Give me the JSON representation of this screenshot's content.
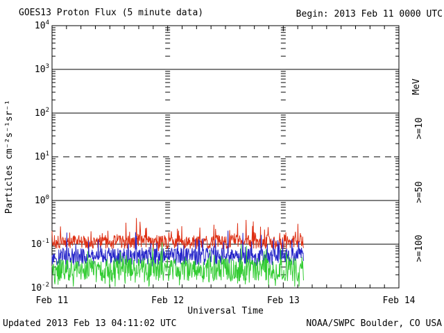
{
  "header": {
    "title": "GOES13 Proton Flux (5 minute data)",
    "begin": "Begin: 2013 Feb 11 0000 UTC"
  },
  "footer": {
    "updated": "Updated 2013 Feb 13 04:11:02 UTC",
    "source": "NOAA/SWPC Boulder, CO USA"
  },
  "colors": {
    "axis": "#000000",
    "background": "#ffffff",
    "ge10": "#de3014",
    "ge50": "#2626c9",
    "ge100": "#33cc33"
  },
  "chart_data": {
    "type": "line",
    "title": "GOES13 Proton Flux (5 minute data)",
    "xlabel": "Universal Time",
    "ylabel": "Particles cm⁻²s⁻¹sr⁻¹",
    "right_axis_label": "MeV",
    "x_start": "2013 Feb 11 0000 UTC",
    "x_end_axis": "2013 Feb 14 0000 UTC",
    "x_days": 3,
    "xticklabels": [
      "Feb 11",
      "Feb 12",
      "Feb 13",
      "Feb 14"
    ],
    "x_minor_tick_hours": 3,
    "yscale": "log",
    "ylog_min": -2,
    "ylog_max": 4,
    "ytick_exponents": [
      4,
      3,
      2,
      1,
      0,
      -1,
      -2
    ],
    "solid_gridline_values": [
      1000,
      100,
      1,
      0.1
    ],
    "dashed_gridline_values": [
      10
    ],
    "day_gridline_style": "column of minor-tick dashes at Feb 12 and Feb 13",
    "data_end_hours": 52.2,
    "sample_interval_minutes": 5,
    "series": [
      {
        "name": ">=10",
        "units": "MeV",
        "color": "#de3014",
        "typical_flux": 0.11,
        "min_flux": 0.08,
        "max_flux": 0.34,
        "base_log": -0.95,
        "jitter_log": 0.16,
        "spike_prob": 0.12,
        "spike_log": 0.42,
        "dip_prob": 0.04,
        "dip_log": 0.12,
        "seed": 7
      },
      {
        "name": ">=50",
        "units": "MeV",
        "color": "#2626c9",
        "typical_flux": 0.05,
        "min_flux": 0.03,
        "max_flux": 0.15,
        "base_log": -1.28,
        "jitter_log": 0.2,
        "spike_prob": 0.08,
        "spike_log": 0.45,
        "dip_prob": 0.05,
        "dip_log": 0.15,
        "seed": 13
      },
      {
        "name": ">=100",
        "units": "MeV",
        "color": "#33cc33",
        "typical_flux": 0.025,
        "min_flux": 0.01,
        "max_flux": 0.07,
        "base_log": -1.58,
        "jitter_log": 0.27,
        "spike_prob": 0.1,
        "spike_log": 0.4,
        "dip_prob": 0.1,
        "dip_log": 0.35,
        "seed": 42
      }
    ]
  }
}
